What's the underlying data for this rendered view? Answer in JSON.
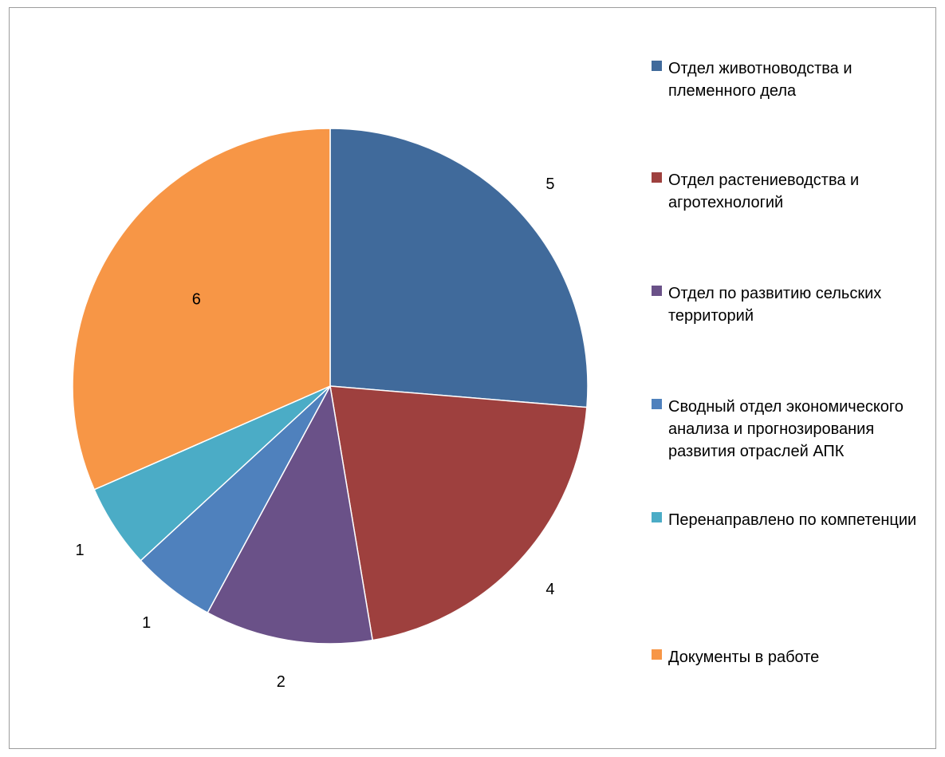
{
  "chart_data": {
    "type": "pie",
    "title": "",
    "categories": [
      "Отдел животноводства и племенного дела",
      "Отдел растениеводства и агротехнологий",
      "Отдел по развитию сельских территорий",
      "Сводный отдел экономического анализа и прогнозирования развития отраслей АПК",
      "Перенаправлено по компетенции",
      "Документы в работе"
    ],
    "values": [
      5,
      4,
      2,
      1,
      1,
      6
    ],
    "colors": [
      "#406a9b",
      "#9e403e",
      "#6a5188",
      "#4f81bd",
      "#4bacc6",
      "#f79646"
    ],
    "label_colors": [
      "#000000",
      "#000000",
      "#000000",
      "#000000",
      "#000000",
      "#ff0000"
    ],
    "legend_position": "right"
  }
}
